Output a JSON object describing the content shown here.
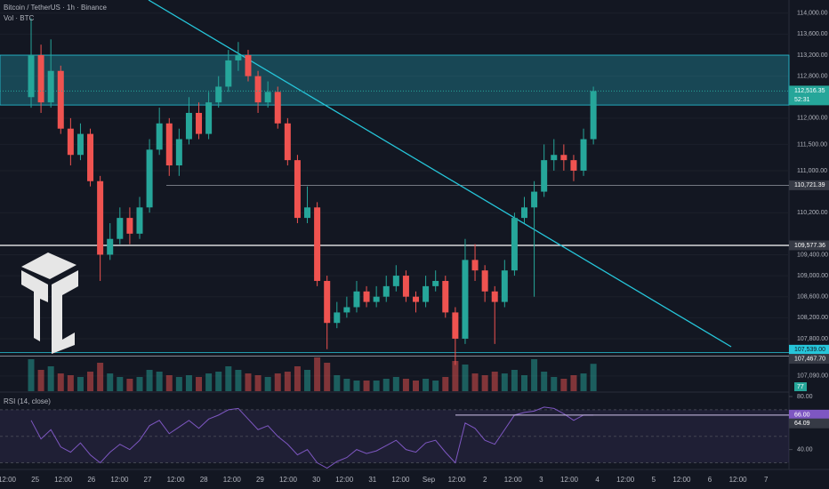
{
  "chart_data": {
    "type": "candlestick",
    "title": "Bitcoin / TetherUS · 1h · Binance",
    "volume_title": "Vol · BTC",
    "rsi_title": "RSI (14, close)",
    "countdown": "52:31",
    "ylim": [
      106800,
      114250
    ],
    "yticks": [
      {
        "value": 114000,
        "label": "114,000.00"
      },
      {
        "value": 113600,
        "label": "113,600.00"
      },
      {
        "value": 113200,
        "label": "113,200.00"
      },
      {
        "value": 112800,
        "label": "112,800.00"
      },
      {
        "value": 112000,
        "label": "112,000.00"
      },
      {
        "value": 111500,
        "label": "111,500.00"
      },
      {
        "value": 111000,
        "label": "111,000.00"
      },
      {
        "value": 110200,
        "label": "110,200.00"
      },
      {
        "value": 109400,
        "label": "109,400.00"
      },
      {
        "value": 109000,
        "label": "109,000.00"
      },
      {
        "value": 108600,
        "label": "108,600.00"
      },
      {
        "value": 108200,
        "label": "108,200.00"
      },
      {
        "value": 107800,
        "label": "107,800.00"
      },
      {
        "value": 107090,
        "label": "107,090.00"
      }
    ],
    "x_labels": [
      "12:00",
      "25",
      "12:00",
      "26",
      "12:00",
      "27",
      "12:00",
      "28",
      "12:00",
      "29",
      "12:00",
      "30",
      "12:00",
      "31",
      "12:00",
      "Sep",
      "12:00",
      "2",
      "12:00",
      "3",
      "12:00",
      "4",
      "12:00",
      "5",
      "12:00",
      "6",
      "12:00",
      "7"
    ],
    "open": [
      112400,
      113200,
      112300,
      112900,
      111800,
      111300,
      111700,
      110800,
      109400,
      109700,
      110100,
      109800,
      110300,
      111400,
      111900,
      111100,
      111600,
      112100,
      111700,
      112300,
      112600,
      113100,
      113200,
      112800,
      112300,
      112500,
      111900,
      111200,
      110100,
      110300,
      108900,
      108100,
      108300,
      108400,
      108700,
      108500,
      108600,
      108800,
      109000,
      108600,
      108500,
      108800,
      108900,
      108300,
      107800,
      109300,
      109100,
      108700,
      108500,
      109100,
      110100,
      110300,
      110600,
      111200,
      111300,
      111200,
      111000,
      111600
    ],
    "high": [
      113900,
      113400,
      113500,
      113000,
      112000,
      111900,
      111800,
      110900,
      110000,
      110300,
      110300,
      110500,
      111600,
      112200,
      112000,
      111800,
      112400,
      112300,
      112500,
      112800,
      113300,
      113450,
      113300,
      112900,
      112700,
      112600,
      112000,
      111300,
      110700,
      110400,
      109000,
      108500,
      108600,
      108900,
      108800,
      108800,
      109000,
      109200,
      109100,
      108700,
      109000,
      109100,
      109000,
      108400,
      109700,
      109600,
      109200,
      108800,
      109300,
      110200,
      110500,
      110800,
      111500,
      111600,
      111500,
      111300,
      111800,
      112600
    ],
    "low": [
      112200,
      112100,
      112200,
      111700,
      111100,
      111200,
      110700,
      108900,
      109300,
      109600,
      109600,
      109700,
      110200,
      111300,
      110900,
      110900,
      111500,
      111600,
      111600,
      112200,
      112500,
      112900,
      112700,
      112100,
      112200,
      111800,
      111100,
      110000,
      110000,
      108800,
      107600,
      108000,
      108200,
      108300,
      108400,
      108400,
      108500,
      108700,
      108500,
      108300,
      108400,
      108700,
      108200,
      107300,
      107700,
      108900,
      108500,
      107700,
      108400,
      109000,
      110000,
      108600,
      110500,
      111000,
      111000,
      110800,
      110900,
      111500
    ],
    "close": [
      113200,
      112300,
      112900,
      111800,
      111300,
      111700,
      110800,
      109400,
      109700,
      110100,
      109800,
      110300,
      111400,
      111900,
      111100,
      111600,
      112100,
      111700,
      112300,
      112600,
      113100,
      113200,
      112800,
      112300,
      112500,
      111900,
      111200,
      110100,
      110300,
      108900,
      108100,
      108300,
      108400,
      108700,
      108500,
      108600,
      108800,
      109000,
      108600,
      108500,
      108800,
      108900,
      108300,
      107800,
      109300,
      109100,
      108700,
      108500,
      109100,
      110100,
      110300,
      110600,
      111200,
      111300,
      111200,
      111000,
      111600,
      112516.35
    ],
    "volume": [
      90,
      60,
      70,
      50,
      45,
      40,
      55,
      80,
      50,
      40,
      35,
      40,
      60,
      55,
      45,
      40,
      45,
      40,
      50,
      55,
      70,
      60,
      50,
      45,
      40,
      50,
      55,
      70,
      60,
      95,
      80,
      45,
      35,
      30,
      30,
      30,
      35,
      40,
      35,
      30,
      35,
      30,
      40,
      85,
      75,
      50,
      45,
      55,
      50,
      60,
      45,
      90,
      55,
      40,
      35,
      45,
      50,
      77
    ],
    "rsi": [
      62,
      48,
      55,
      42,
      38,
      45,
      36,
      30,
      38,
      44,
      40,
      47,
      58,
      62,
      52,
      57,
      62,
      56,
      63,
      66,
      70,
      71,
      63,
      55,
      58,
      50,
      44,
      36,
      40,
      30,
      26,
      31,
      34,
      40,
      37,
      39,
      43,
      47,
      40,
      38,
      45,
      47,
      38,
      30,
      60,
      56,
      47,
      44,
      55,
      66,
      68,
      69,
      72,
      71,
      67,
      62,
      66,
      66
    ],
    "rsi_ylim": [
      25,
      82
    ],
    "rsi_yticks": [
      {
        "value": 80,
        "label": "80.00"
      },
      {
        "value": 40,
        "label": "40.00"
      }
    ],
    "rsi_last": {
      "value": 66,
      "label": "66.00"
    },
    "rsi_ma": {
      "value": 64.09,
      "label": "64.09"
    },
    "last_price": {
      "value": 112516.35,
      "label": "112,516.35"
    },
    "zone": [
      112250,
      113200
    ],
    "levels": [
      {
        "value": 110721.39,
        "label": "110,721.39",
        "color": "#9598a1"
      },
      {
        "value": 109577.36,
        "label": "109,577.36",
        "color": "#ffffff"
      },
      {
        "value": 107539,
        "label": "107,539.00",
        "color": "#26c6da"
      },
      {
        "value": 107467.7,
        "label": "107,467.70",
        "color": "#9598a1"
      }
    ],
    "up_color": "#26a69a",
    "down_color": "#ef5350"
  }
}
